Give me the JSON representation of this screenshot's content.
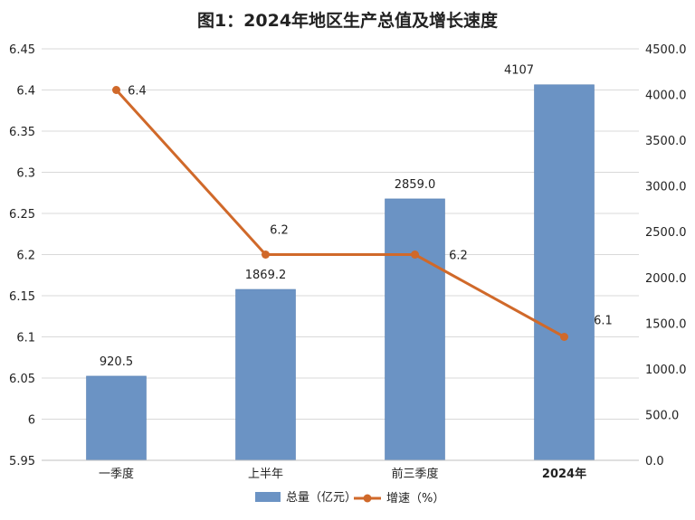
{
  "chart_data": {
    "type": "bar",
    "title": "图1：2024年地区生产总值及增长速度",
    "categories": [
      "一季度",
      "上半年",
      "前三季度",
      "2024年"
    ],
    "series": [
      {
        "name": "总量（亿元）",
        "type": "bar",
        "axis": "right",
        "color": "#6b93c4",
        "values": [
          920.5,
          1869.2,
          2859.0,
          4107
        ],
        "labels": [
          "920.5",
          "1869.2",
          "2859.0",
          "4107"
        ]
      },
      {
        "name": "增速（%）",
        "type": "line",
        "axis": "left",
        "color": "#d0692a",
        "values": [
          6.4,
          6.2,
          6.2,
          6.1
        ],
        "labels": [
          "6.4",
          "6.2",
          "6.2",
          "6.1"
        ]
      }
    ],
    "y_left": {
      "min": 5.95,
      "max": 6.45,
      "ticks": [
        "5.95",
        "6",
        "6.05",
        "6.1",
        "6.15",
        "6.2",
        "6.25",
        "6.3",
        "6.35",
        "6.4",
        "6.45"
      ]
    },
    "y_right": {
      "min": 0,
      "max": 4500,
      "ticks": [
        "0.0",
        "500.0",
        "1000.0",
        "1500.0",
        "2000.0",
        "2500.0",
        "3000.0",
        "3500.0",
        "4000.0",
        "4500.0"
      ]
    },
    "grid": true,
    "legend": "bottom"
  }
}
